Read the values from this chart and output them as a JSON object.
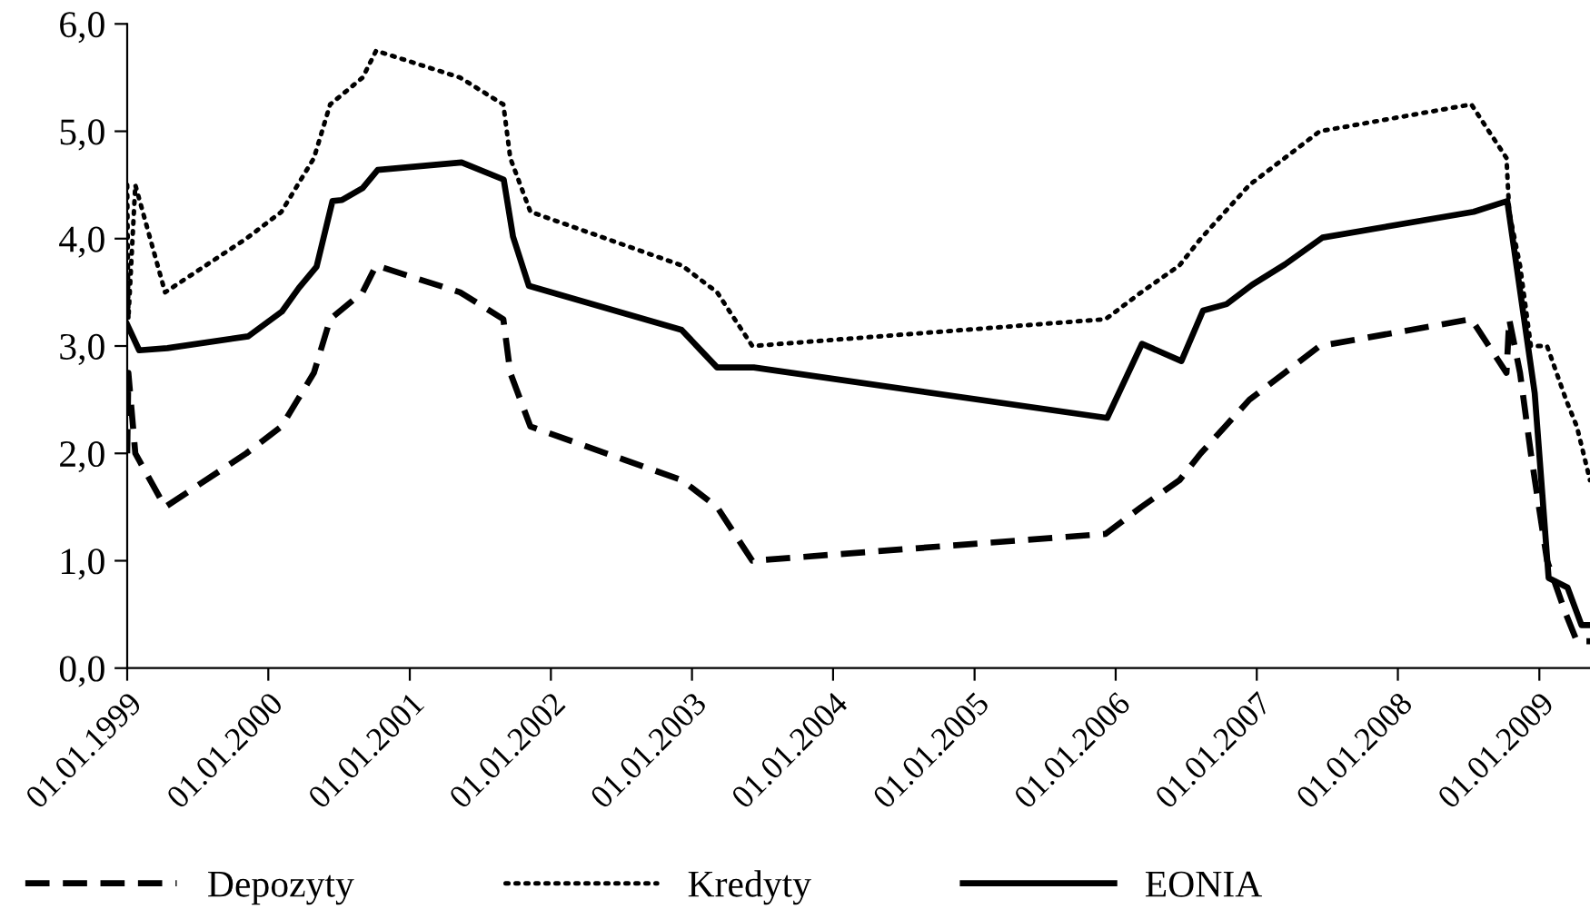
{
  "chart_data": {
    "type": "line",
    "xlim": [
      "1999-01-01",
      "2009-05-12"
    ],
    "xticks": [
      {
        "value": "1999-01-01",
        "label": "01.01.1999"
      },
      {
        "value": "2000-01-01",
        "label": "01.01.2000"
      },
      {
        "value": "2001-01-01",
        "label": "01.01.2001"
      },
      {
        "value": "2002-01-01",
        "label": "01.01.2002"
      },
      {
        "value": "2003-01-01",
        "label": "01.01.2003"
      },
      {
        "value": "2004-01-01",
        "label": "01.01.2004"
      },
      {
        "value": "2005-01-01",
        "label": "01.01.2005"
      },
      {
        "value": "2006-01-01",
        "label": "01.01.2006"
      },
      {
        "value": "2007-01-01",
        "label": "01.01.2007"
      },
      {
        "value": "2008-01-01",
        "label": "01.01.2008"
      },
      {
        "value": "2009-01-01",
        "label": "01.01.2009"
      }
    ],
    "ylim": [
      0,
      6
    ],
    "yticks": [
      {
        "value": 0,
        "label": "0,0"
      },
      {
        "value": 1,
        "label": "1,0"
      },
      {
        "value": 2,
        "label": "2,0"
      },
      {
        "value": 3,
        "label": "3,0"
      },
      {
        "value": 4,
        "label": "4,0"
      },
      {
        "value": 5,
        "label": "5,0"
      },
      {
        "value": 6,
        "label": "6,0"
      }
    ],
    "grid": false,
    "legend": "bottom",
    "marker": "none",
    "series": [
      {
        "name": "Depozyty",
        "color": "#000000",
        "line_style": "dashed",
        "x": [
          "1999-01-01",
          "1999-01-04",
          "1999-01-22",
          "1999-04-09",
          "1999-11-05",
          "2000-02-04",
          "2000-03-17",
          "2000-04-28",
          "2000-06-09",
          "2000-09-01",
          "2000-10-06",
          "2001-05-11",
          "2001-08-31",
          "2001-09-18",
          "2001-11-09",
          "2002-12-06",
          "2003-03-07",
          "2003-06-06",
          "2005-12-06",
          "2006-03-08",
          "2006-06-15",
          "2006-08-09",
          "2006-10-11",
          "2006-12-13",
          "2007-03-14",
          "2007-06-13",
          "2008-07-09",
          "2008-10-08",
          "2008-10-15",
          "2008-11-12",
          "2008-12-10",
          "2009-01-21",
          "2009-03-11",
          "2009-04-08",
          "2009-05-12"
        ],
        "values": [
          2.0,
          2.75,
          2.0,
          1.5,
          2.0,
          2.25,
          2.5,
          2.75,
          3.25,
          3.5,
          3.75,
          3.5,
          3.25,
          2.75,
          2.25,
          1.75,
          1.5,
          1.0,
          1.25,
          1.5,
          1.75,
          2.0,
          2.25,
          2.5,
          2.75,
          3.0,
          3.25,
          2.75,
          3.25,
          2.75,
          2.0,
          1.0,
          0.5,
          0.25,
          0.25
        ]
      },
      {
        "name": "Kredyty",
        "color": "#000000",
        "line_style": "dotted",
        "x": [
          "1999-01-01",
          "1999-01-04",
          "1999-01-22",
          "1999-04-09",
          "1999-11-05",
          "2000-02-04",
          "2000-03-17",
          "2000-04-28",
          "2000-06-09",
          "2000-09-01",
          "2000-10-06",
          "2001-05-11",
          "2001-08-31",
          "2001-09-18",
          "2001-11-09",
          "2002-12-06",
          "2003-03-07",
          "2003-06-06",
          "2005-12-06",
          "2006-03-08",
          "2006-06-15",
          "2006-08-09",
          "2006-10-11",
          "2006-12-13",
          "2007-03-14",
          "2007-06-13",
          "2008-07-09",
          "2008-10-08",
          "2008-10-15",
          "2008-11-12",
          "2008-12-10",
          "2009-01-21",
          "2009-03-11",
          "2009-04-08",
          "2009-05-12"
        ],
        "values": [
          4.5,
          3.25,
          4.5,
          3.5,
          4.0,
          4.25,
          4.5,
          4.75,
          5.25,
          5.5,
          5.75,
          5.5,
          5.25,
          4.75,
          4.25,
          3.75,
          3.5,
          3.0,
          3.25,
          3.5,
          3.75,
          4.0,
          4.25,
          4.5,
          4.75,
          5.0,
          5.25,
          4.75,
          4.25,
          3.75,
          3.0,
          3.0,
          2.5,
          2.25,
          1.75
        ]
      },
      {
        "name": "EONIA",
        "color": "#000000",
        "line_style": "solid",
        "x": [
          "1999-01-01",
          "1999-02-01",
          "1999-04-15",
          "1999-11-10",
          "2000-02-05",
          "2000-03-20",
          "2000-05-05",
          "2000-06-15",
          "2000-07-10",
          "2000-09-01",
          "2000-10-10",
          "2001-05-15",
          "2001-09-01",
          "2001-09-25",
          "2001-11-05",
          "2002-12-05",
          "2003-03-07",
          "2003-06-10",
          "2005-12-10",
          "2006-03-10",
          "2006-06-20",
          "2006-08-15",
          "2006-10-15",
          "2006-12-20",
          "2007-03-15",
          "2007-06-20",
          "2008-07-15",
          "2008-10-10",
          "2008-12-20",
          "2009-01-25",
          "2009-03-15",
          "2009-04-20",
          "2009-05-12"
        ],
        "values": [
          3.2,
          2.96,
          2.98,
          3.09,
          3.32,
          3.54,
          3.74,
          4.35,
          4.36,
          4.47,
          4.64,
          4.71,
          4.55,
          4.02,
          3.56,
          3.15,
          2.8,
          2.8,
          2.33,
          3.02,
          2.86,
          3.33,
          3.39,
          3.57,
          3.76,
          4.01,
          4.25,
          4.35,
          2.56,
          0.84,
          0.75,
          0.4,
          0.4
        ]
      }
    ]
  }
}
